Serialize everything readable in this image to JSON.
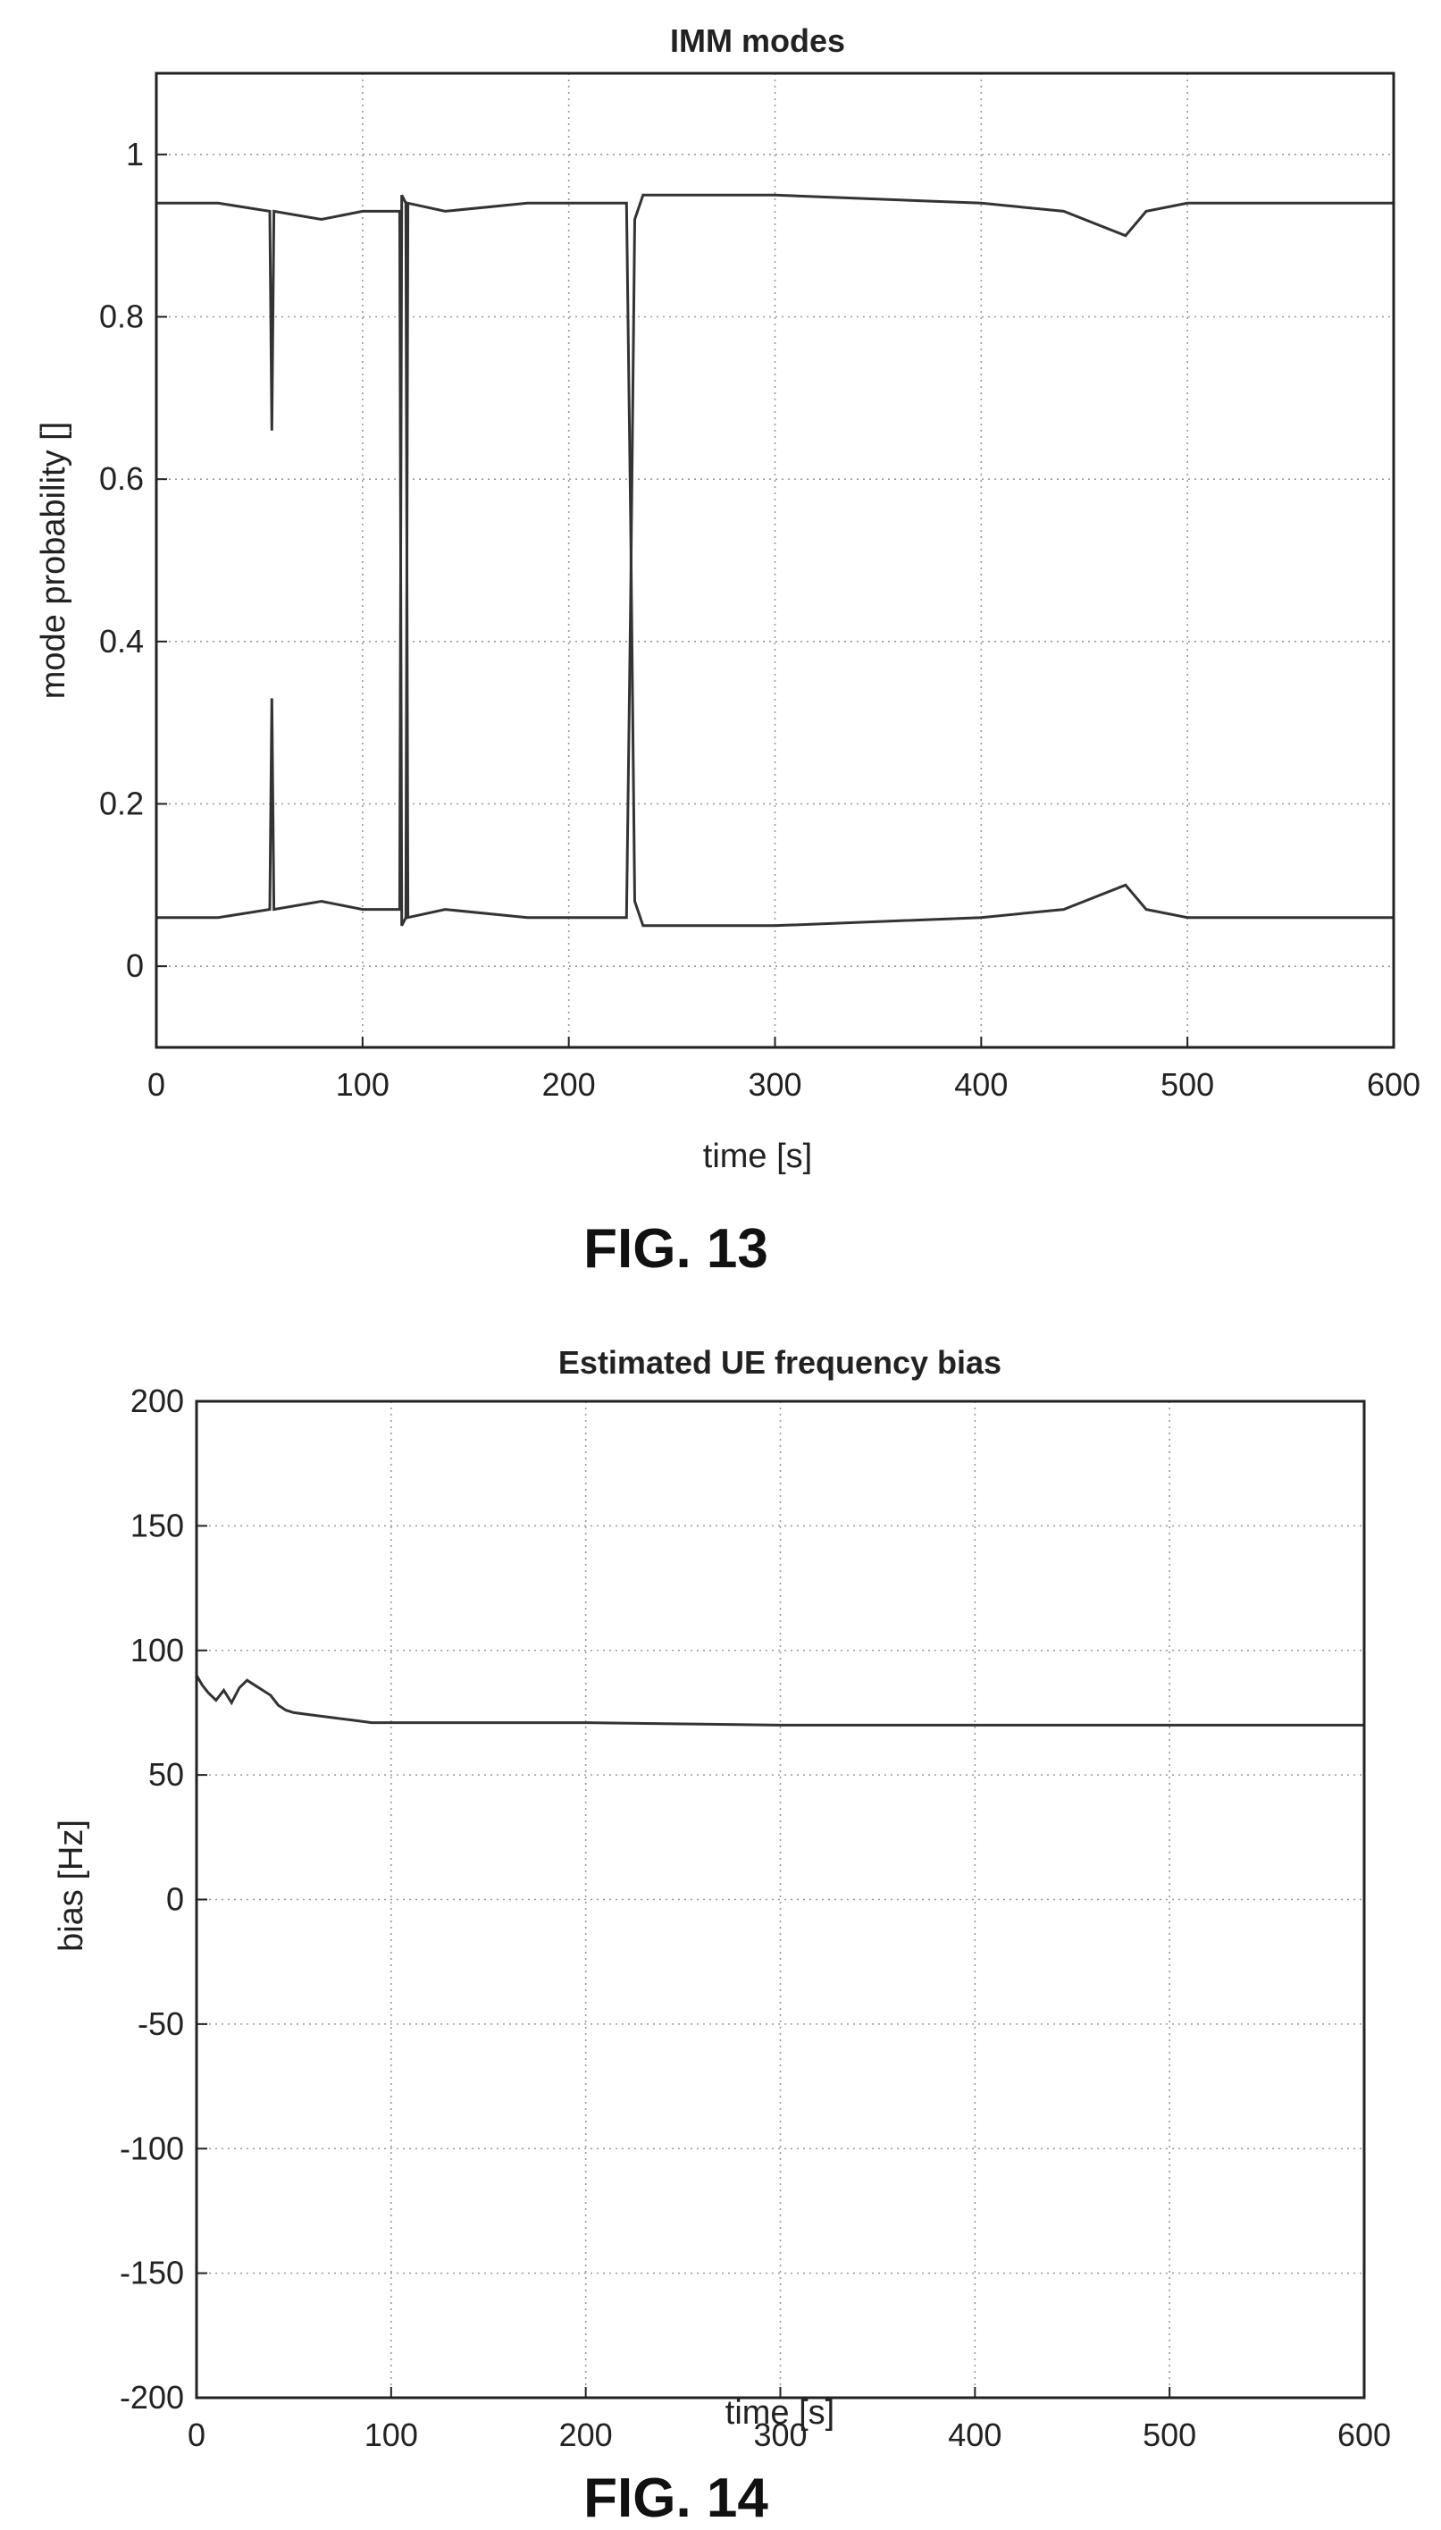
{
  "figures": {
    "fig13": {
      "caption": "FIG. 13"
    },
    "fig14": {
      "caption": "FIG. 14"
    }
  },
  "chart_data": [
    {
      "type": "line",
      "title": "IMM modes",
      "xlabel": "time [s]",
      "ylabel": "mode probability []",
      "xlim": [
        0,
        600
      ],
      "ylim": [
        -0.1,
        1.1
      ],
      "xticks": [
        0,
        100,
        200,
        300,
        400,
        500,
        600
      ],
      "yticks": [
        0,
        0.2,
        0.4,
        0.6,
        0.8,
        1
      ],
      "ytick_labels": [
        "0",
        "0.2",
        "0.4",
        "0.6",
        "0.8",
        "1"
      ],
      "grid": true,
      "series": [
        {
          "color": "#333333",
          "x": [
            0,
            30,
            55,
            56,
            57,
            80,
            100,
            118,
            119,
            121,
            122,
            140,
            180,
            228,
            230,
            232,
            236,
            240,
            300,
            400,
            440,
            470,
            480,
            500,
            555,
            556,
            557,
            600
          ],
          "y": [
            0.94,
            0.94,
            0.93,
            0.66,
            0.93,
            0.92,
            0.93,
            0.93,
            0.05,
            0.06,
            0.94,
            0.93,
            0.94,
            0.94,
            0.55,
            0.08,
            0.05,
            0.05,
            0.05,
            0.06,
            0.07,
            0.1,
            0.07,
            0.06,
            0.06,
            0.06,
            0.06,
            0.06
          ]
        },
        {
          "color": "#333333",
          "x": [
            0,
            30,
            55,
            56,
            57,
            80,
            100,
            118,
            119,
            121,
            122,
            140,
            180,
            228,
            230,
            232,
            236,
            240,
            300,
            400,
            440,
            470,
            480,
            500,
            555,
            556,
            557,
            600
          ],
          "y": [
            0.06,
            0.06,
            0.07,
            0.33,
            0.07,
            0.08,
            0.07,
            0.07,
            0.95,
            0.94,
            0.06,
            0.07,
            0.06,
            0.06,
            0.45,
            0.92,
            0.95,
            0.95,
            0.95,
            0.94,
            0.93,
            0.9,
            0.93,
            0.94,
            0.94,
            0.94,
            0.94,
            0.94
          ]
        }
      ]
    },
    {
      "type": "line",
      "title": "Estimated UE frequency bias",
      "xlabel": "time [s]",
      "ylabel": "bias [Hz]",
      "xlim": [
        0,
        600
      ],
      "ylim": [
        -200,
        200
      ],
      "xticks": [
        0,
        100,
        200,
        300,
        400,
        500,
        600
      ],
      "yticks": [
        -200,
        -150,
        -100,
        -50,
        0,
        50,
        100,
        150,
        200
      ],
      "grid": true,
      "series": [
        {
          "color": "#333333",
          "x": [
            0,
            3,
            6,
            10,
            14,
            18,
            22,
            26,
            30,
            34,
            38,
            42,
            46,
            50,
            60,
            70,
            80,
            90,
            100,
            150,
            200,
            250,
            300,
            350,
            400,
            450,
            500,
            550,
            600
          ],
          "y": [
            90,
            86,
            83,
            80,
            84,
            79,
            85,
            88,
            86,
            84,
            82,
            78,
            76,
            75,
            74,
            73,
            72,
            71,
            71,
            71,
            71,
            70.5,
            70,
            70,
            70,
            70,
            70,
            70,
            70
          ]
        }
      ]
    }
  ]
}
